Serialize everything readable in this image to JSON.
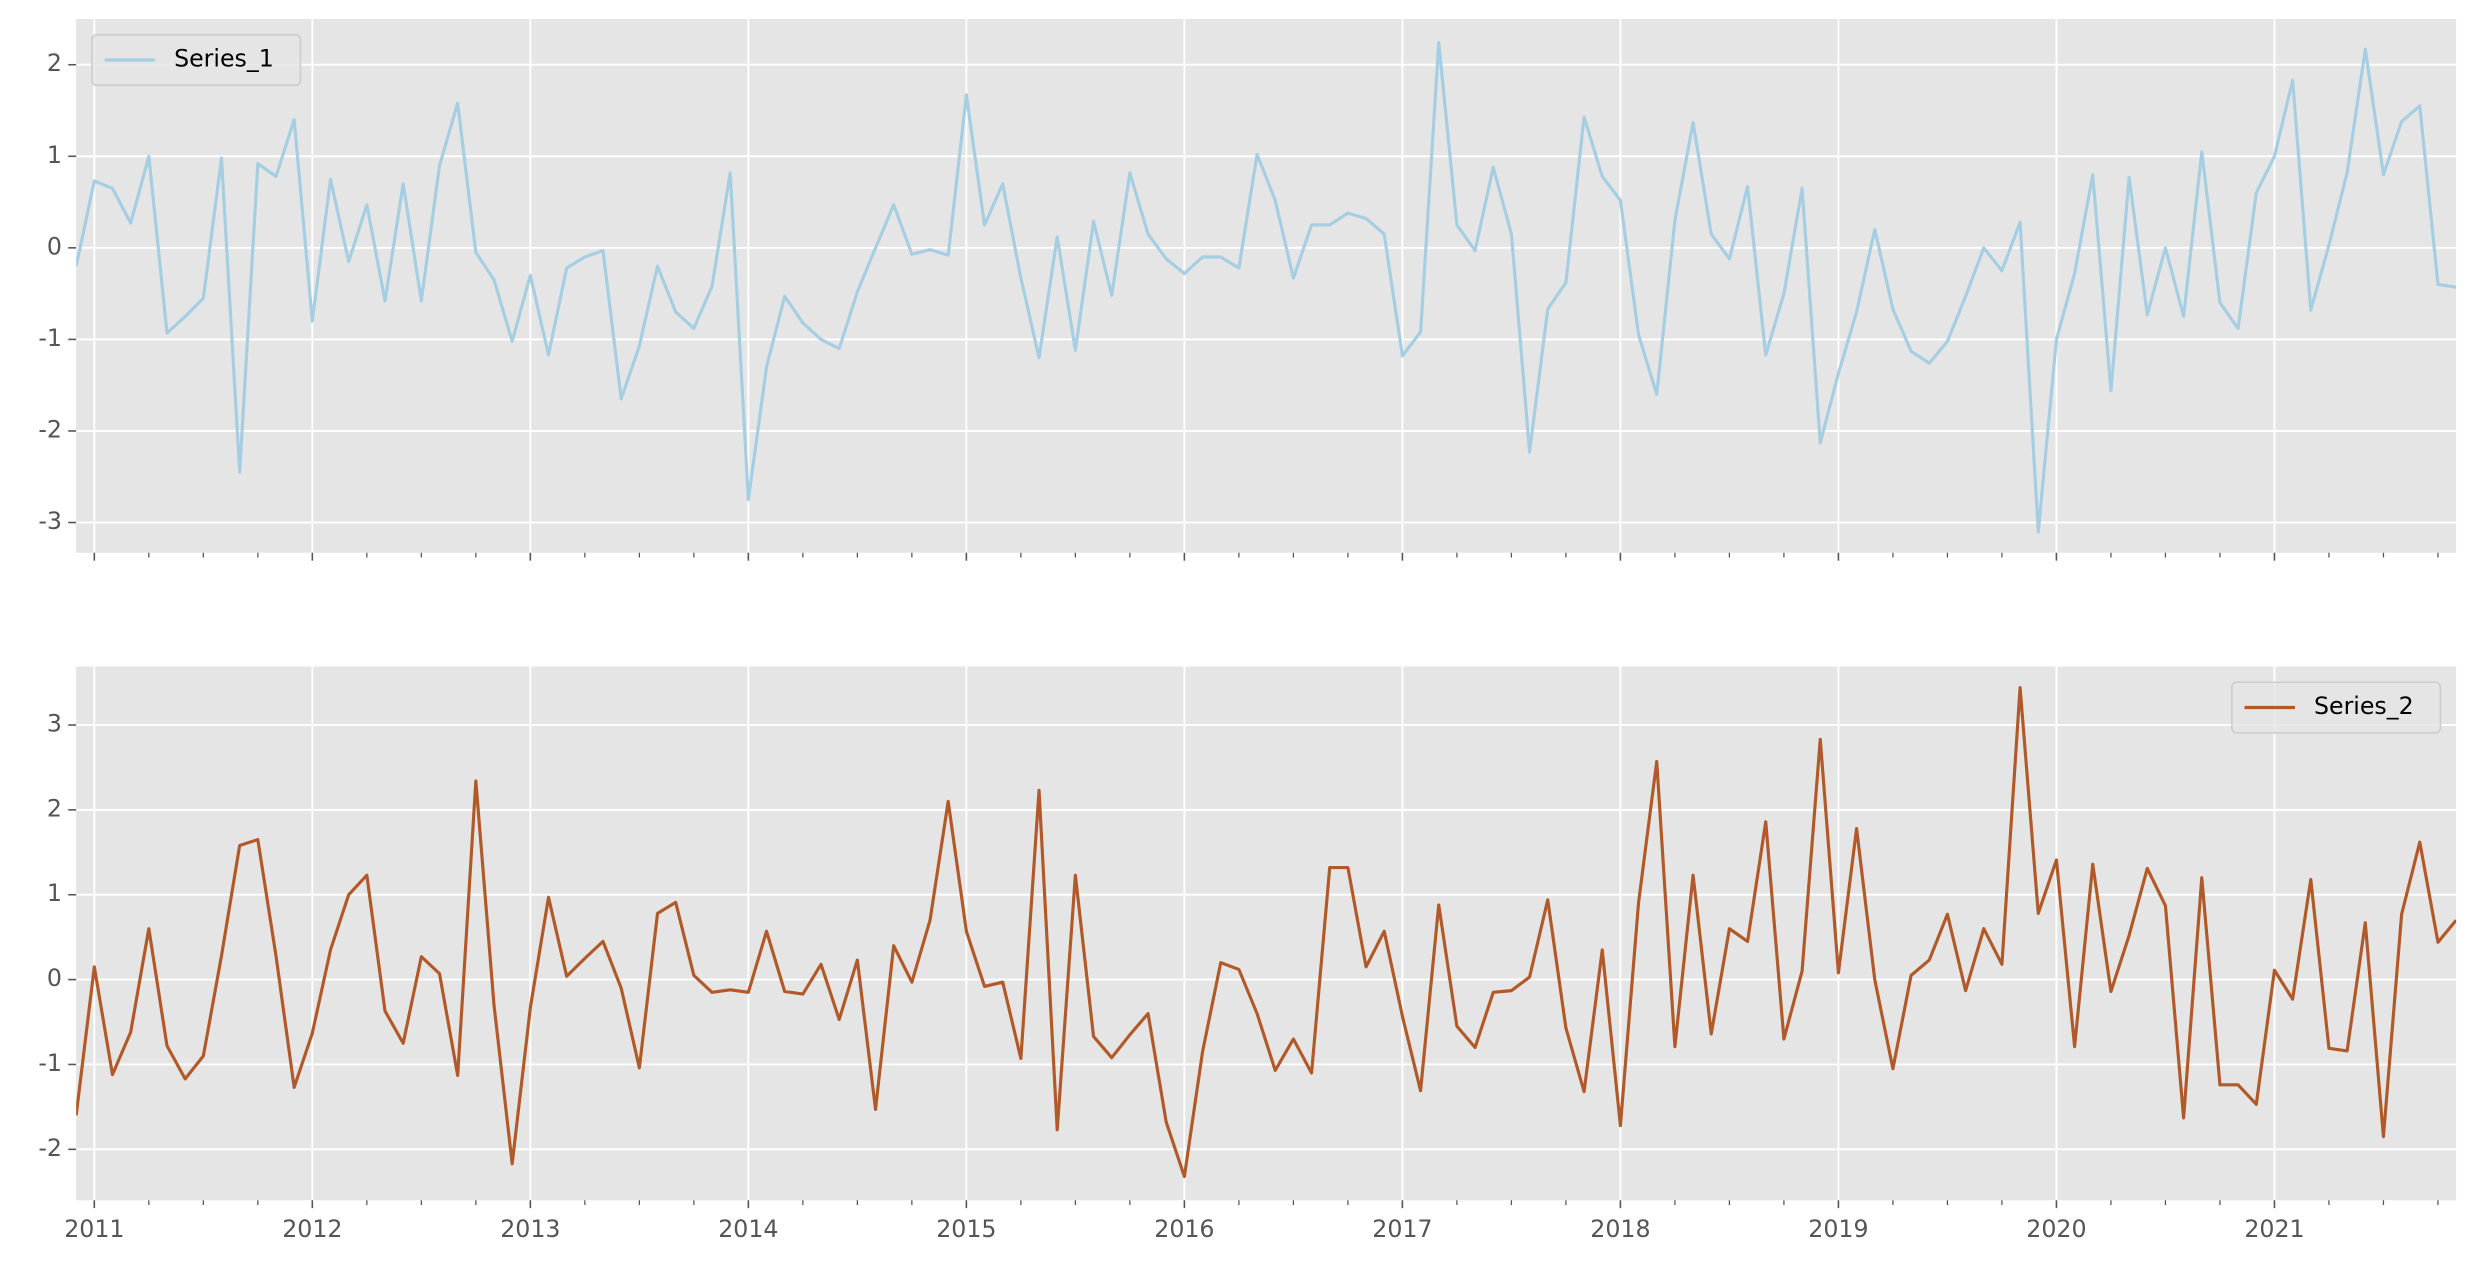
{
  "chart_data": [
    {
      "type": "line",
      "legend": "upper left",
      "x": [
        "2010-12",
        "2011-01",
        "2011-02",
        "2011-03",
        "2011-04",
        "2011-05",
        "2011-06",
        "2011-07",
        "2011-08",
        "2011-09",
        "2011-10",
        "2011-11",
        "2011-12",
        "2012-01",
        "2012-02",
        "2012-03",
        "2012-04",
        "2012-05",
        "2012-06",
        "2012-07",
        "2012-08",
        "2012-09",
        "2012-10",
        "2012-11",
        "2012-12",
        "2013-01",
        "2013-02",
        "2013-03",
        "2013-04",
        "2013-05",
        "2013-06",
        "2013-07",
        "2013-08",
        "2013-09",
        "2013-10",
        "2013-11",
        "2013-12",
        "2014-01",
        "2014-02",
        "2014-03",
        "2014-04",
        "2014-05",
        "2014-06",
        "2014-07",
        "2014-08",
        "2014-09",
        "2014-10",
        "2014-11",
        "2014-12",
        "2015-01",
        "2015-02",
        "2015-03",
        "2015-04",
        "2015-05",
        "2015-06",
        "2015-07",
        "2015-08",
        "2015-09",
        "2015-10",
        "2015-11",
        "2015-12",
        "2016-01",
        "2016-02",
        "2016-03",
        "2016-04",
        "2016-05",
        "2016-06",
        "2016-07",
        "2016-08",
        "2016-09",
        "2016-10",
        "2016-11",
        "2016-12",
        "2017-01",
        "2017-02",
        "2017-03",
        "2017-04",
        "2017-05",
        "2017-06",
        "2017-07",
        "2017-08",
        "2017-09",
        "2017-10",
        "2017-11",
        "2017-12",
        "2018-01",
        "2018-02",
        "2018-03",
        "2018-04",
        "2018-05",
        "2018-06",
        "2018-07",
        "2018-08",
        "2018-09",
        "2018-10",
        "2018-11",
        "2018-12",
        "2019-01",
        "2019-02",
        "2019-03",
        "2019-04",
        "2019-05",
        "2019-06",
        "2019-07",
        "2019-08",
        "2019-09",
        "2019-10",
        "2019-11",
        "2019-12",
        "2020-01",
        "2020-02",
        "2020-03",
        "2020-04",
        "2020-05",
        "2020-06",
        "2020-07",
        "2020-08",
        "2020-09",
        "2020-10",
        "2020-11",
        "2020-12",
        "2021-01",
        "2021-02",
        "2021-03",
        "2021-04",
        "2021-05",
        "2021-06",
        "2021-07",
        "2021-08",
        "2021-09",
        "2021-10",
        "2021-11"
      ],
      "series": [
        {
          "name": "Series_1",
          "color": "#a6cee3",
          "values": [
            -0.2,
            0.73,
            0.65,
            0.27,
            1.0,
            -0.93,
            -0.75,
            -0.55,
            0.98,
            -2.45,
            0.92,
            0.78,
            1.4,
            -0.8,
            0.75,
            -0.15,
            0.47,
            -0.58,
            0.7,
            -0.58,
            0.9,
            1.58,
            -0.05,
            -0.35,
            -1.02,
            -0.3,
            -1.17,
            -0.22,
            -0.1,
            -0.03,
            -1.65,
            -1.07,
            -0.2,
            -0.7,
            -0.88,
            -0.42,
            0.82,
            -2.75,
            -1.3,
            -0.53,
            -0.82,
            -1.0,
            -1.1,
            -0.48,
            0.0,
            0.47,
            -0.07,
            -0.02,
            -0.08,
            1.67,
            0.25,
            0.7,
            -0.33,
            -1.2,
            0.12,
            -1.12,
            0.29,
            -0.52,
            0.82,
            0.15,
            -0.12,
            -0.28,
            -0.1,
            -0.1,
            -0.22,
            1.02,
            0.52,
            -0.33,
            0.25,
            0.25,
            0.38,
            0.32,
            0.15,
            -1.18,
            -0.92,
            2.24,
            0.25,
            -0.03,
            0.88,
            0.15,
            -2.23,
            -0.67,
            -0.38,
            1.43,
            0.78,
            0.52,
            -0.95,
            -1.6,
            0.3,
            1.37,
            0.15,
            -0.12,
            0.67,
            -1.17,
            -0.5,
            0.65,
            -2.13,
            -1.37,
            -0.7,
            0.2,
            -0.67,
            -1.13,
            -1.26,
            -1.02,
            -0.53,
            0.0,
            -0.25,
            0.28,
            -3.1,
            -1.0,
            -0.28,
            0.8,
            -1.56,
            0.77,
            -0.73,
            0.0,
            -0.75,
            1.05,
            -0.6,
            -0.88,
            0.6,
            1.0,
            1.83,
            -0.68,
            0.03,
            0.82,
            2.17,
            0.8,
            1.38,
            1.55,
            -0.4,
            -0.43
          ]
        }
      ],
      "xlim": [
        "2010-12",
        "2021-11"
      ],
      "xticks": [
        2011,
        2012,
        2013,
        2014,
        2015,
        2016,
        2017,
        2018,
        2019,
        2020,
        2021
      ],
      "xtick_labels_shown": false,
      "ylim": [
        -3.33,
        2.5
      ],
      "yticks": [
        -3,
        -2,
        -1,
        0,
        1,
        2
      ],
      "grid": true
    },
    {
      "type": "line",
      "legend": "upper right",
      "x": [
        "2010-12",
        "2011-01",
        "2011-02",
        "2011-03",
        "2011-04",
        "2011-05",
        "2011-06",
        "2011-07",
        "2011-08",
        "2011-09",
        "2011-10",
        "2011-11",
        "2011-12",
        "2012-01",
        "2012-02",
        "2012-03",
        "2012-04",
        "2012-05",
        "2012-06",
        "2012-07",
        "2012-08",
        "2012-09",
        "2012-10",
        "2012-11",
        "2012-12",
        "2013-01",
        "2013-02",
        "2013-03",
        "2013-04",
        "2013-05",
        "2013-06",
        "2013-07",
        "2013-08",
        "2013-09",
        "2013-10",
        "2013-11",
        "2013-12",
        "2014-01",
        "2014-02",
        "2014-03",
        "2014-04",
        "2014-05",
        "2014-06",
        "2014-07",
        "2014-08",
        "2014-09",
        "2014-10",
        "2014-11",
        "2014-12",
        "2015-01",
        "2015-02",
        "2015-03",
        "2015-04",
        "2015-05",
        "2015-06",
        "2015-07",
        "2015-08",
        "2015-09",
        "2015-10",
        "2015-11",
        "2015-12",
        "2016-01",
        "2016-02",
        "2016-03",
        "2016-04",
        "2016-05",
        "2016-06",
        "2016-07",
        "2016-08",
        "2016-09",
        "2016-10",
        "2016-11",
        "2016-12",
        "2017-01",
        "2017-02",
        "2017-03",
        "2017-04",
        "2017-05",
        "2017-06",
        "2017-07",
        "2017-08",
        "2017-09",
        "2017-10",
        "2017-11",
        "2017-12",
        "2018-01",
        "2018-02",
        "2018-03",
        "2018-04",
        "2018-05",
        "2018-06",
        "2018-07",
        "2018-08",
        "2018-09",
        "2018-10",
        "2018-11",
        "2018-12",
        "2019-01",
        "2019-02",
        "2019-03",
        "2019-04",
        "2019-05",
        "2019-06",
        "2019-07",
        "2019-08",
        "2019-09",
        "2019-10",
        "2019-11",
        "2019-12",
        "2020-01",
        "2020-02",
        "2020-03",
        "2020-04",
        "2020-05",
        "2020-06",
        "2020-07",
        "2020-08",
        "2020-09",
        "2020-10",
        "2020-11",
        "2020-12",
        "2021-01",
        "2021-02",
        "2021-03",
        "2021-04",
        "2021-05",
        "2021-06",
        "2021-07",
        "2021-08",
        "2021-09",
        "2021-10",
        "2021-11"
      ],
      "series": [
        {
          "name": "Series_2",
          "color": "#b15928",
          "values": [
            -1.6,
            0.15,
            -1.12,
            -0.62,
            0.6,
            -0.78,
            -1.17,
            -0.9,
            0.28,
            1.58,
            1.65,
            0.28,
            -1.27,
            -0.63,
            0.35,
            1.0,
            1.23,
            -0.37,
            -0.75,
            0.27,
            0.07,
            -1.13,
            2.34,
            -0.3,
            -2.17,
            -0.33,
            0.97,
            0.04,
            0.25,
            0.45,
            -0.1,
            -1.04,
            0.78,
            0.91,
            0.05,
            -0.15,
            -0.12,
            -0.15,
            0.57,
            -0.14,
            -0.17,
            0.18,
            -0.47,
            0.23,
            -1.53,
            0.4,
            -0.03,
            0.7,
            2.1,
            0.57,
            -0.08,
            -0.03,
            -0.93,
            2.23,
            -1.77,
            1.23,
            -0.67,
            -0.92,
            -0.65,
            -0.4,
            -1.68,
            -2.32,
            -0.85,
            0.2,
            0.12,
            -0.4,
            -1.07,
            -0.7,
            -1.1,
            1.32,
            1.32,
            0.15,
            0.57,
            -0.43,
            -1.31,
            0.88,
            -0.55,
            -0.8,
            -0.15,
            -0.13,
            0.03,
            0.94,
            -0.57,
            -1.32,
            0.35,
            -1.72,
            0.91,
            2.57,
            -0.79,
            1.23,
            -0.64,
            0.6,
            0.45,
            1.86,
            -0.7,
            0.1,
            2.83,
            0.08,
            1.78,
            0.0,
            -1.05,
            0.05,
            0.23,
            0.77,
            -0.13,
            0.6,
            0.18,
            3.44,
            0.78,
            1.41,
            -0.79,
            1.36,
            -0.14,
            0.52,
            1.31,
            0.87,
            -1.63,
            1.2,
            -1.24,
            -1.24,
            -1.47,
            0.11,
            -0.23,
            1.18,
            -0.81,
            -0.84,
            0.67,
            -1.85,
            0.77,
            1.62,
            0.44,
            0.7
          ]
        }
      ],
      "xlim": [
        "2010-12",
        "2021-11"
      ],
      "xticks": [
        2011,
        2012,
        2013,
        2014,
        2015,
        2016,
        2017,
        2018,
        2019,
        2020,
        2021
      ],
      "xtick_labels_shown": true,
      "ylim": [
        -2.6,
        3.69
      ],
      "yticks": [
        -2,
        -1,
        0,
        1,
        2,
        3
      ],
      "grid": true
    }
  ]
}
